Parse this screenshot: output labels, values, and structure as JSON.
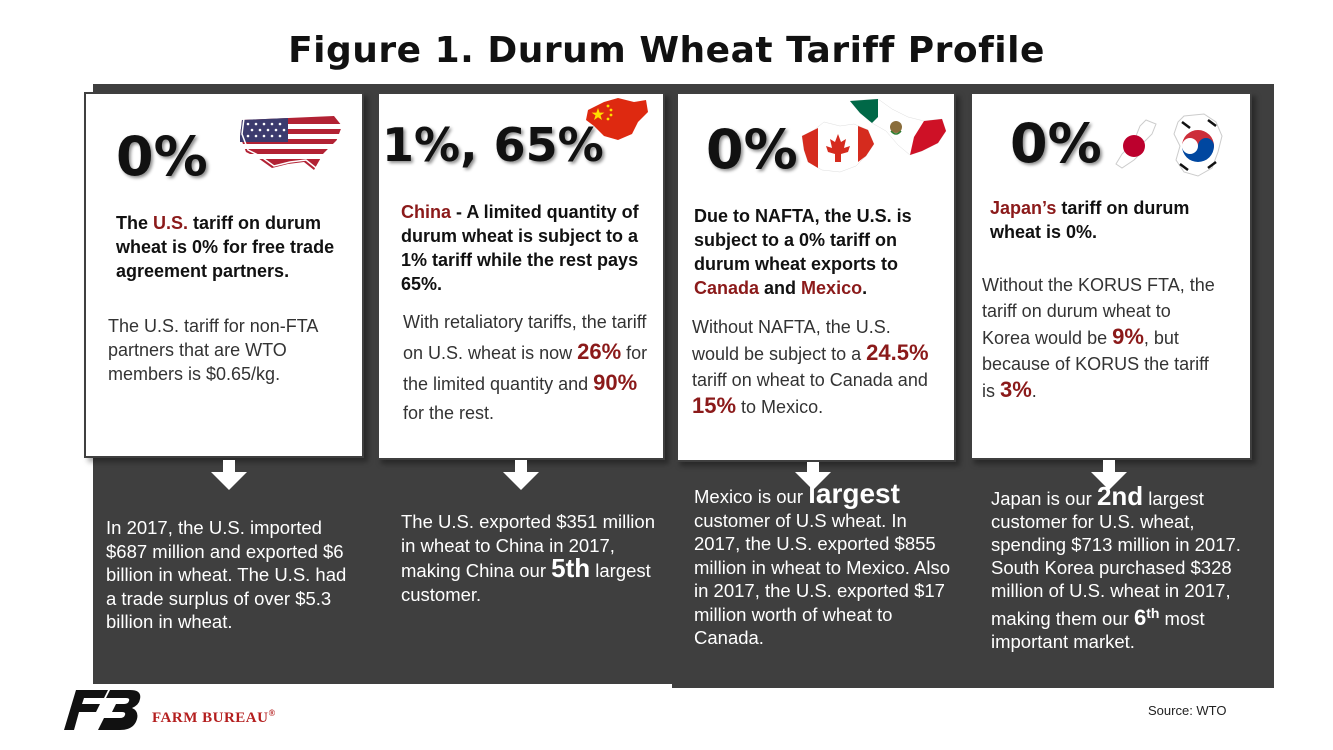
{
  "title": "Figure 1. Durum Wheat Tariff Profile",
  "panels": [
    {
      "id": "us",
      "rate": "0%",
      "headline_parts": [
        "The ",
        "U.S.",
        " tariff on durum wheat is 0% for free trade agreement partners."
      ],
      "detail": "The U.S. tariff for non-FTA partners that are WTO members is $0.65/kg.",
      "fact": "In 2017, the U.S. imported $687 million and exported $6 billion in wheat. The U.S. had a trade surplus of over $5.3 billion in wheat."
    },
    {
      "id": "china",
      "rate": "1%, 65%",
      "headline_parts": [
        "China",
        " - A limited quantity of durum wheat is subject to a 1% tariff while the rest pays 65%."
      ],
      "detail_parts": [
        "With retaliatory tariffs, the tariff on U.S. wheat is now ",
        "26%",
        " for the limited quantity and ",
        "90%",
        " for the rest."
      ],
      "fact_parts": [
        "The U.S. exported $351 million in wheat to China in 2017, making China our ",
        "5th",
        " largest customer."
      ]
    },
    {
      "id": "nafta",
      "rate": "0%",
      "headline_parts": [
        "Due to NAFTA, the U.S. is subject to a 0% tariff on durum wheat exports to ",
        "Canada",
        " and ",
        "Mexico",
        "."
      ],
      "detail_parts": [
        "Without NAFTA, the U.S. would be subject to a ",
        "24.5%",
        " tariff on wheat to Canada and ",
        "15%",
        " to Mexico."
      ],
      "fact_parts": [
        "Mexico is our ",
        "largest",
        " customer of U.S wheat. In 2017, the U.S. exported $855 million in wheat to Mexico. Also in 2017, the U.S. exported $17 million worth of wheat to Canada."
      ]
    },
    {
      "id": "japan-korea",
      "rate": "0%",
      "headline_parts": [
        "Japan’s",
        " tariff on durum wheat is 0%."
      ],
      "detail_parts": [
        "Without the KORUS FTA, the tariff on durum wheat to Korea would be ",
        "9%",
        ", but because of KORUS the tariff is ",
        "3%",
        "."
      ],
      "fact_parts": [
        "Japan is our ",
        "2nd",
        " largest customer for U.S. wheat, spending $713 million in 2017. South Korea purchased $328 million of U.S. wheat in 2017, making them our ",
        "6",
        "th",
        " most important market."
      ]
    }
  ],
  "footer": {
    "source": "Source: WTO",
    "brand": "FARM BUREAU",
    "brand_mark": "®"
  },
  "colors": {
    "dark_panel": "#3f3f3f",
    "accent_red": "#8b1a1a",
    "brand_red": "#b41e1e"
  },
  "icons": [
    "us-flag-map-icon",
    "china-flag-map-icon",
    "canada-flag-map-icon",
    "mexico-flag-map-icon",
    "japan-flag-map-icon",
    "korea-flag-map-icon",
    "farm-bureau-logo-icon",
    "down-arrow-icon"
  ]
}
